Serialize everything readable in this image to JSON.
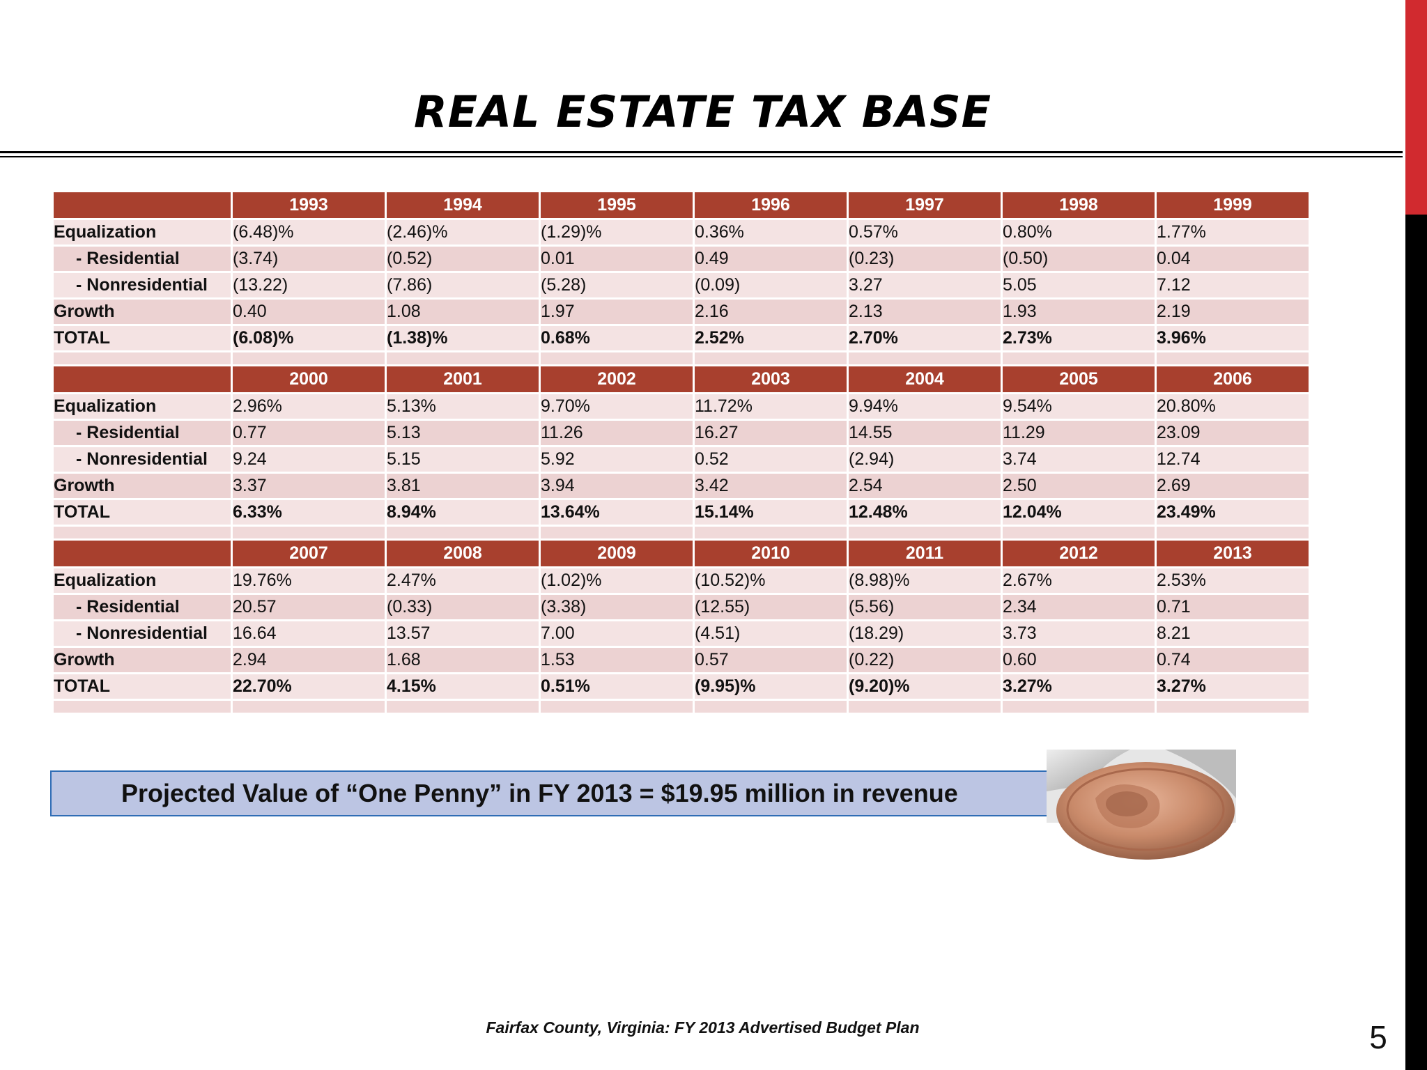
{
  "title": "REAL ESTATE TAX BASE",
  "row_labels": [
    "Equalization",
    "-  Residential",
    "-  Nonresidential",
    "Growth",
    "TOTAL"
  ],
  "blocks": [
    {
      "years": [
        "1993",
        "1994",
        "1995",
        "1996",
        "1997",
        "1998",
        "1999"
      ],
      "rows": [
        [
          "(6.48)%",
          "(2.46)%",
          "(1.29)%",
          "0.36%",
          "0.57%",
          "0.80%",
          "1.77%"
        ],
        [
          "(3.74)",
          "(0.52)",
          "0.01",
          "0.49",
          "(0.23)",
          "(0.50)",
          "0.04"
        ],
        [
          "(13.22)",
          "(7.86)",
          "(5.28)",
          "(0.09)",
          "3.27",
          "5.05",
          "7.12"
        ],
        [
          "0.40",
          "1.08",
          "1.97",
          "2.16",
          "2.13",
          "1.93",
          "2.19"
        ],
        [
          "(6.08)%",
          "(1.38)%",
          "0.68%",
          "2.52%",
          "2.70%",
          "2.73%",
          "3.96%"
        ]
      ]
    },
    {
      "years": [
        "2000",
        "2001",
        "2002",
        "2003",
        "2004",
        "2005",
        "2006"
      ],
      "rows": [
        [
          "2.96%",
          "5.13%",
          "9.70%",
          "11.72%",
          "9.94%",
          "9.54%",
          "20.80%"
        ],
        [
          "0.77",
          "5.13",
          "11.26",
          "16.27",
          "14.55",
          "11.29",
          "23.09"
        ],
        [
          "9.24",
          "5.15",
          "5.92",
          "0.52",
          "(2.94)",
          "3.74",
          "12.74"
        ],
        [
          "3.37",
          "3.81",
          "3.94",
          "3.42",
          "2.54",
          "2.50",
          "2.69"
        ],
        [
          "6.33%",
          "8.94%",
          "13.64%",
          "15.14%",
          "12.48%",
          "12.04%",
          "23.49%"
        ]
      ]
    },
    {
      "years": [
        "2007",
        "2008",
        "2009",
        "2010",
        "2011",
        "2012",
        "2013"
      ],
      "rows": [
        [
          "19.76%",
          "2.47%",
          "(1.02)%",
          "(10.52)%",
          "(8.98)%",
          "2.67%",
          "2.53%"
        ],
        [
          "20.57",
          "(0.33)",
          "(3.38)",
          "(12.55)",
          "(5.56)",
          "2.34",
          "0.71"
        ],
        [
          "16.64",
          "13.57",
          "7.00",
          "(4.51)",
          "(18.29)",
          "3.73",
          "8.21"
        ],
        [
          "2.94",
          "1.68",
          "1.53",
          "0.57",
          "(0.22)",
          "0.60",
          "0.74"
        ],
        [
          "22.70%",
          "4.15%",
          "0.51%",
          "(9.95)%",
          "(9.20)%",
          "3.27%",
          "3.27%"
        ]
      ]
    }
  ],
  "penny_text": "Projected Value of “One Penny” in FY 2013 = $19.95 million in revenue",
  "penny_icon": "penny-coin-icon",
  "footer": "Fairfax County, Virginia: FY 2013 Advertised Budget Plan",
  "page_number": "5",
  "colors": {
    "header_fill": "#a8402e",
    "row_light": "#f4e3e3",
    "row_dark": "#ecd2d2",
    "callout_fill": "#bcc5e3",
    "callout_border": "#2f6db5",
    "side_red": "#d12a2f"
  }
}
